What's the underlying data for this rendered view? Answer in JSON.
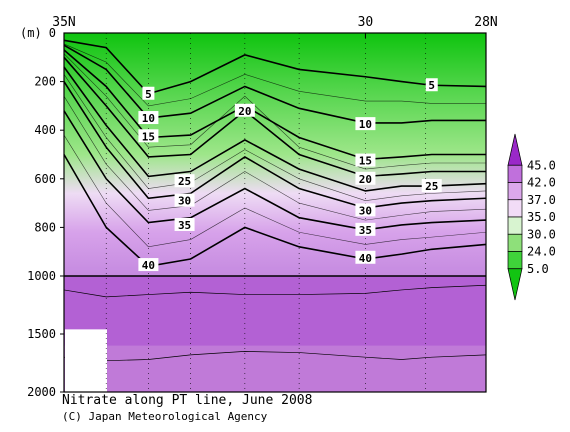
{
  "chart_data": {
    "type": "contour",
    "title": "Nitrate along PT line, June 2008",
    "credit": "(C) Japan Meteorological Agency",
    "y_unit_label": "(m)",
    "x_ticks": [
      {
        "value": 35,
        "label": "35N"
      },
      {
        "value": 30,
        "label": "30"
      },
      {
        "value": 28,
        "label": "28N"
      }
    ],
    "x_range": [
      35,
      28
    ],
    "y_ticks_upper": [
      0,
      200,
      400,
      600,
      800,
      1000
    ],
    "y_ticks_lower": [
      1000,
      1500,
      2000
    ],
    "y_range": [
      0,
      2000
    ],
    "axis_break_depth": 1000,
    "legend": {
      "labels": [
        "45.0",
        "42.0",
        "37.0",
        "35.0",
        "30.0",
        "24.0",
        "5.0"
      ],
      "colors": [
        "#9a28c8",
        "#c070dc",
        "#dca8ec",
        "#f2dcf7",
        "#d8f4d0",
        "#8ee07a",
        "#3fd33a",
        "#12c412"
      ]
    },
    "colors": {
      "surface": "#0fc40f",
      "nitracline": "#9ee68a",
      "intermediate": "#d7a2ea",
      "deep": "#b361d4"
    },
    "contour_labels": [
      {
        "text": "5",
        "lat": 33.6,
        "depth": 250
      },
      {
        "text": "5",
        "lat": 28.9,
        "depth": 215
      },
      {
        "text": "10",
        "lat": 33.6,
        "depth": 350
      },
      {
        "text": "10",
        "lat": 30.0,
        "depth": 375
      },
      {
        "text": "15",
        "lat": 33.6,
        "depth": 425
      },
      {
        "text": "15",
        "lat": 30.0,
        "depth": 525
      },
      {
        "text": "20",
        "lat": 32.0,
        "depth": 320
      },
      {
        "text": "20",
        "lat": 30.0,
        "depth": 600
      },
      {
        "text": "25",
        "lat": 33.0,
        "depth": 610
      },
      {
        "text": "25",
        "lat": 28.9,
        "depth": 630
      },
      {
        "text": "30",
        "lat": 33.0,
        "depth": 690
      },
      {
        "text": "30",
        "lat": 30.0,
        "depth": 730
      },
      {
        "text": "35",
        "lat": 33.0,
        "depth": 790
      },
      {
        "text": "35",
        "lat": 30.0,
        "depth": 810
      },
      {
        "text": "40",
        "lat": 33.6,
        "depth": 955
      },
      {
        "text": "40",
        "lat": 30.0,
        "depth": 925
      }
    ]
  }
}
